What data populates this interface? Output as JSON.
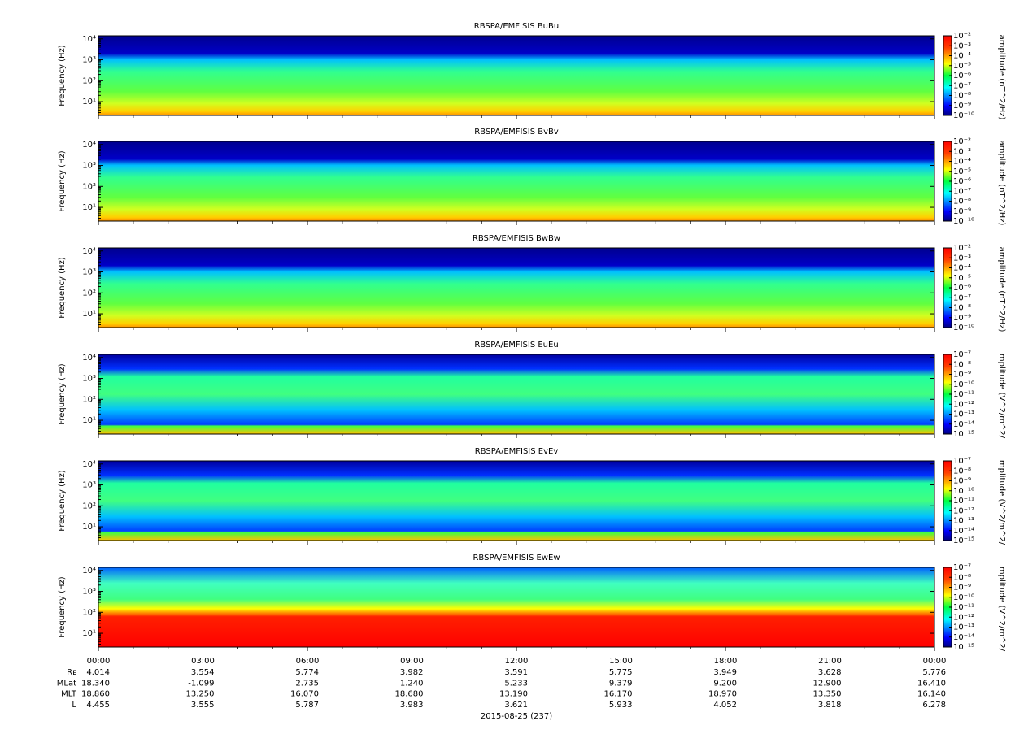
{
  "chart_data": [
    {
      "type": "spectrogram",
      "title": "RBSPA/EMFISIS  BuBu",
      "y_label": "Frequency (Hz)",
      "y_log": true,
      "ylim": [
        2.2,
        14000
      ],
      "yticks": [
        {
          "value": 10,
          "label": "10¹"
        },
        {
          "value": 100,
          "label": "10²"
        },
        {
          "value": 1000,
          "label": "10³"
        },
        {
          "value": 10000,
          "label": "10⁴"
        }
      ],
      "colorbar_label": "amplitude (nT^2/Hz)",
      "colorbar_log": true,
      "clim": [
        1e-10,
        0.01
      ],
      "cticks": [
        {
          "value": 1e-10,
          "label": "10⁻¹⁰"
        },
        {
          "value": 1e-09,
          "label": "10⁻⁹"
        },
        {
          "value": 1e-08,
          "label": "10⁻⁸"
        },
        {
          "value": 1e-07,
          "label": "10⁻⁷"
        },
        {
          "value": 1e-06,
          "label": "10⁻⁶"
        },
        {
          "value": 1e-05,
          "label": "10⁻⁵"
        },
        {
          "value": 0.0001,
          "label": "10⁻⁴"
        },
        {
          "value": 0.001,
          "label": "10⁻³"
        },
        {
          "value": 0.01,
          "label": "10⁻²"
        }
      ]
    },
    {
      "type": "spectrogram",
      "title": "RBSPA/EMFISIS  BvBv",
      "y_label": "Frequency (Hz)",
      "y_log": true,
      "ylim": [
        2.2,
        14000
      ],
      "yticks": [
        {
          "value": 10,
          "label": "10¹"
        },
        {
          "value": 100,
          "label": "10²"
        },
        {
          "value": 1000,
          "label": "10³"
        },
        {
          "value": 10000,
          "label": "10⁴"
        }
      ],
      "colorbar_label": "amplitude (nT^2/Hz)",
      "colorbar_log": true,
      "clim": [
        1e-10,
        0.01
      ],
      "cticks": [
        {
          "value": 1e-10,
          "label": "10⁻¹⁰"
        },
        {
          "value": 1e-09,
          "label": "10⁻⁹"
        },
        {
          "value": 1e-08,
          "label": "10⁻⁸"
        },
        {
          "value": 1e-07,
          "label": "10⁻⁷"
        },
        {
          "value": 1e-06,
          "label": "10⁻⁶"
        },
        {
          "value": 1e-05,
          "label": "10⁻⁵"
        },
        {
          "value": 0.0001,
          "label": "10⁻⁴"
        },
        {
          "value": 0.001,
          "label": "10⁻³"
        },
        {
          "value": 0.01,
          "label": "10⁻²"
        }
      ]
    },
    {
      "type": "spectrogram",
      "title": "RBSPA/EMFISIS  BwBw",
      "y_label": "Frequency (Hz)",
      "y_log": true,
      "ylim": [
        2.2,
        14000
      ],
      "yticks": [
        {
          "value": 10,
          "label": "10¹"
        },
        {
          "value": 100,
          "label": "10²"
        },
        {
          "value": 1000,
          "label": "10³"
        },
        {
          "value": 10000,
          "label": "10⁴"
        }
      ],
      "colorbar_label": "amplitude (nT^2/Hz)",
      "colorbar_log": true,
      "clim": [
        1e-10,
        0.01
      ],
      "cticks": [
        {
          "value": 1e-10,
          "label": "10⁻¹⁰"
        },
        {
          "value": 1e-09,
          "label": "10⁻⁹"
        },
        {
          "value": 1e-08,
          "label": "10⁻⁸"
        },
        {
          "value": 1e-07,
          "label": "10⁻⁷"
        },
        {
          "value": 1e-06,
          "label": "10⁻⁶"
        },
        {
          "value": 1e-05,
          "label": "10⁻⁵"
        },
        {
          "value": 0.0001,
          "label": "10⁻⁴"
        },
        {
          "value": 0.001,
          "label": "10⁻³"
        },
        {
          "value": 0.01,
          "label": "10⁻²"
        }
      ]
    },
    {
      "type": "spectrogram",
      "title": "RBSPA/EMFISIS  EuEu",
      "y_label": "Frequency (Hz)",
      "y_log": true,
      "ylim": [
        2.2,
        14000
      ],
      "yticks": [
        {
          "value": 10,
          "label": "10¹"
        },
        {
          "value": 100,
          "label": "10²"
        },
        {
          "value": 1000,
          "label": "10³"
        },
        {
          "value": 10000,
          "label": "10⁴"
        }
      ],
      "colorbar_label": "mplitude (V^2/m^2/",
      "colorbar_log": true,
      "clim": [
        1e-15,
        1e-07
      ],
      "cticks": [
        {
          "value": 1e-15,
          "label": "10⁻¹⁵"
        },
        {
          "value": 1e-14,
          "label": "10⁻¹⁴"
        },
        {
          "value": 1e-13,
          "label": "10⁻¹³"
        },
        {
          "value": 1e-12,
          "label": "10⁻¹²"
        },
        {
          "value": 1e-11,
          "label": "10⁻¹¹"
        },
        {
          "value": 1e-10,
          "label": "10⁻¹⁰"
        },
        {
          "value": 1e-09,
          "label": "10⁻⁹"
        },
        {
          "value": 1e-08,
          "label": "10⁻⁸"
        },
        {
          "value": 1e-07,
          "label": "10⁻⁷"
        }
      ]
    },
    {
      "type": "spectrogram",
      "title": "RBSPA/EMFISIS  EvEv",
      "y_label": "Frequency (Hz)",
      "y_log": true,
      "ylim": [
        2.2,
        14000
      ],
      "yticks": [
        {
          "value": 10,
          "label": "10¹"
        },
        {
          "value": 100,
          "label": "10²"
        },
        {
          "value": 1000,
          "label": "10³"
        },
        {
          "value": 10000,
          "label": "10⁴"
        }
      ],
      "colorbar_label": "mplitude (V^2/m^2/",
      "colorbar_log": true,
      "clim": [
        1e-15,
        1e-07
      ],
      "cticks": [
        {
          "value": 1e-15,
          "label": "10⁻¹⁵"
        },
        {
          "value": 1e-14,
          "label": "10⁻¹⁴"
        },
        {
          "value": 1e-13,
          "label": "10⁻¹³"
        },
        {
          "value": 1e-12,
          "label": "10⁻¹²"
        },
        {
          "value": 1e-11,
          "label": "10⁻¹¹"
        },
        {
          "value": 1e-10,
          "label": "10⁻¹⁰"
        },
        {
          "value": 1e-09,
          "label": "10⁻⁹"
        },
        {
          "value": 1e-08,
          "label": "10⁻⁸"
        },
        {
          "value": 1e-07,
          "label": "10⁻⁷"
        }
      ]
    },
    {
      "type": "spectrogram",
      "title": "RBSPA/EMFISIS  EwEw",
      "y_label": "Frequency (Hz)",
      "y_log": true,
      "ylim": [
        2.2,
        14000
      ],
      "yticks": [
        {
          "value": 10,
          "label": "10¹"
        },
        {
          "value": 100,
          "label": "10²"
        },
        {
          "value": 1000,
          "label": "10³"
        },
        {
          "value": 10000,
          "label": "10⁴"
        }
      ],
      "colorbar_label": "mplitude (V^2/m^2/",
      "colorbar_log": true,
      "clim": [
        1e-15,
        1e-07
      ],
      "cticks": [
        {
          "value": 1e-15,
          "label": "10⁻¹⁵"
        },
        {
          "value": 1e-14,
          "label": "10⁻¹⁴"
        },
        {
          "value": 1e-13,
          "label": "10⁻¹³"
        },
        {
          "value": 1e-12,
          "label": "10⁻¹²"
        },
        {
          "value": 1e-11,
          "label": "10⁻¹¹"
        },
        {
          "value": 1e-10,
          "label": "10⁻¹⁰"
        },
        {
          "value": 1e-09,
          "label": "10⁻⁹"
        },
        {
          "value": 1e-08,
          "label": "10⁻⁸"
        },
        {
          "value": 1e-07,
          "label": "10⁻⁷"
        }
      ]
    }
  ],
  "x_axis": {
    "xticks": [
      "00:00",
      "03:00",
      "06:00",
      "09:00",
      "12:00",
      "15:00",
      "18:00",
      "21:00",
      "00:00"
    ],
    "ephemeris": [
      {
        "label": "Rᴇ",
        "values": [
          "4.014",
          "3.554",
          "5.774",
          "3.982",
          "3.591",
          "5.775",
          "3.949",
          "3.628",
          "5.776"
        ]
      },
      {
        "label": "MLat",
        "values": [
          "18.340",
          "-1.099",
          "2.735",
          "1.240",
          "5.233",
          "9.379",
          "9.200",
          "12.900",
          "16.410"
        ]
      },
      {
        "label": "MLT",
        "values": [
          "18.860",
          "13.250",
          "16.070",
          "18.680",
          "13.190",
          "16.170",
          "18.970",
          "13.350",
          "16.140"
        ]
      },
      {
        "label": "L",
        "values": [
          "4.455",
          "3.555",
          "5.787",
          "3.983",
          "3.621",
          "5.933",
          "4.052",
          "3.818",
          "6.278"
        ]
      }
    ],
    "date": "2015-08-25 (237)"
  }
}
